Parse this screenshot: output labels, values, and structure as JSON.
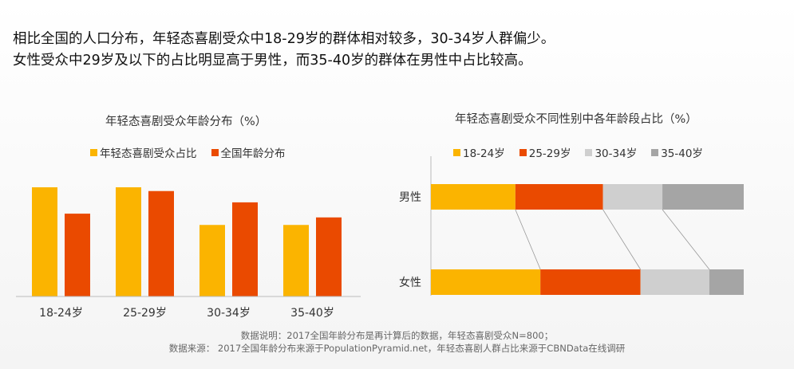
{
  "headline": {
    "line1": "相比全国的人口分布，年轻态喜剧受众中18-29岁的群体相对较多，30-34岁人群偏少。",
    "line2": "女性受众中29岁及以下的占比明显高于男性，而35-40岁的群体在男性中占比较高。"
  },
  "chart_data": [
    {
      "type": "bar",
      "title": "年轻态喜剧受众年龄分布（%）",
      "categories": [
        "18-24岁",
        "25-29岁",
        "30-34岁",
        "35-40岁"
      ],
      "series": [
        {
          "name": "年轻态喜剧受众占比",
          "color": "#FBB400",
          "values": [
            29,
            29,
            19,
            19
          ]
        },
        {
          "name": "全国年龄分布",
          "color": "#EA4A00",
          "values": [
            22,
            28,
            25,
            21
          ]
        }
      ],
      "ylim": [
        0,
        35
      ],
      "legend": "top",
      "grid": false
    },
    {
      "type": "bar",
      "stacked": true,
      "orientation": "horizontal",
      "title": "年轻态喜剧受众不同性别中各年龄段占比（%）",
      "categories": [
        "男性",
        "女性"
      ],
      "series": [
        {
          "name": "18-24岁",
          "color": "#FBB400",
          "values": [
            27,
            35
          ]
        },
        {
          "name": "25-29岁",
          "color": "#EA4A00",
          "values": [
            28,
            32
          ]
        },
        {
          "name": "30-34岁",
          "color": "#CFCFCF",
          "values": [
            19,
            22
          ]
        },
        {
          "name": "35-40岁",
          "color": "#A5A5A5",
          "values": [
            26,
            11
          ]
        }
      ],
      "xlim": [
        0,
        100
      ],
      "legend": "top",
      "grid": false
    }
  ],
  "footer": {
    "line1": "数据说明：2017全国年龄分布是再计算后的数据，年轻态喜剧受众N=800；",
    "line2": "数据来源： 2017全国年龄分布来源于PopulationPyramid.net，年轻态喜剧人群占比来源于CBNData在线调研"
  }
}
